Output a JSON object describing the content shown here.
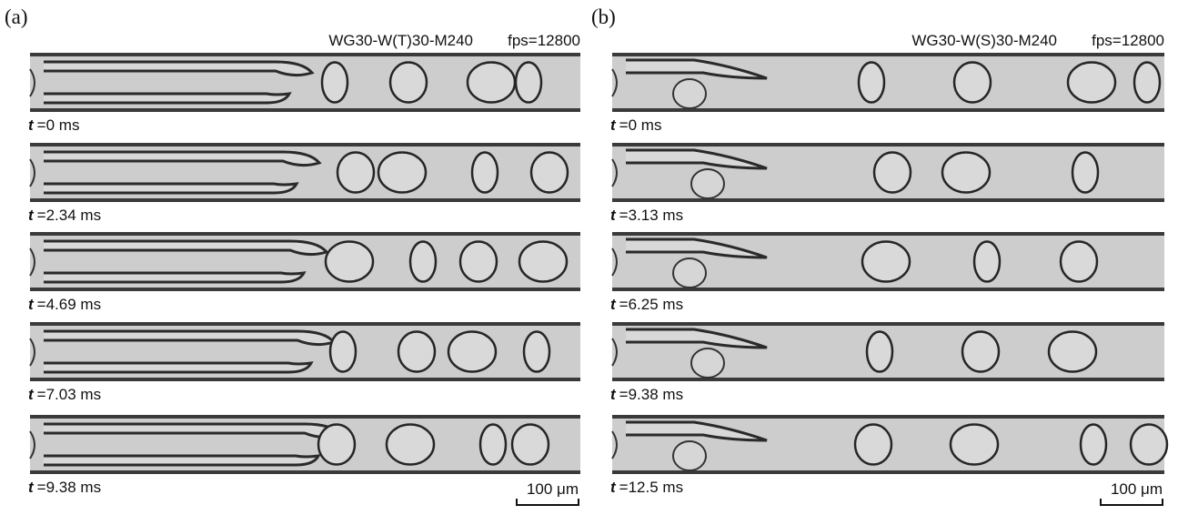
{
  "panels": [
    {
      "label": "(a)",
      "condition": "WG30-W(T)30-M240",
      "fps": "fps=12800",
      "frames": [
        {
          "variable": "t",
          "time": "=0 ms"
        },
        {
          "variable": "t",
          "time": "=2.34 ms"
        },
        {
          "variable": "t",
          "time": "=4.69 ms"
        },
        {
          "variable": "t",
          "time": "=7.03 ms"
        },
        {
          "variable": "t",
          "time": "=9.38 ms"
        }
      ],
      "scale_bar": "100 μm"
    },
    {
      "label": "(b)",
      "condition": "WG30-W(S)30-M240",
      "fps": "fps=12800",
      "frames": [
        {
          "variable": "t",
          "time": "=0 ms"
        },
        {
          "variable": "t",
          "time": "=3.13 ms"
        },
        {
          "variable": "t",
          "time": "=6.25 ms"
        },
        {
          "variable": "t",
          "time": "=9.38 ms"
        },
        {
          "variable": "t",
          "time": "=12.5 ms"
        }
      ],
      "scale_bar": "100 μm"
    }
  ]
}
